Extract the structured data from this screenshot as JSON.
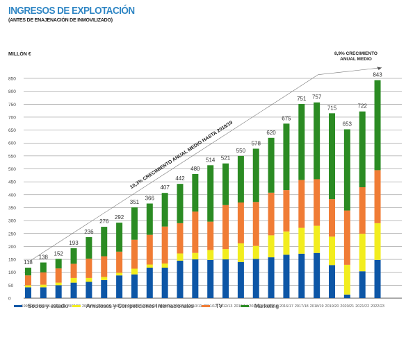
{
  "header": {
    "title": "INGRESOS DE EXPLOTACIÓN",
    "subtitle": "(ANTES DE ENAJENACIÓN DE INMOVILIZADO)",
    "unit": "MILLÓN €"
  },
  "chart_data": {
    "type": "bar",
    "stacked": true,
    "ylabel": "MILLÓN €",
    "ylim": [
      0,
      850
    ],
    "yticks": [
      0,
      50,
      100,
      150,
      200,
      250,
      300,
      350,
      400,
      450,
      500,
      550,
      600,
      650,
      700,
      750,
      800,
      850
    ],
    "grid": true,
    "legend_position": "bottom",
    "categories": [
      "1999/00",
      "2000/01",
      "2001/02",
      "2002/03",
      "2003/04",
      "2004/05",
      "2005/06",
      "2006/07",
      "2007/08",
      "2008/09",
      "2009/10",
      "2010/11",
      "2011/12",
      "2012/13",
      "2013/14",
      "2014/15",
      "2015/16",
      "2016/17",
      "2017/18",
      "2018/19",
      "2019/20",
      "2020/21",
      "2021/22",
      "2022/23"
    ],
    "totals": [
      118,
      138,
      152,
      193,
      236,
      276,
      292,
      351,
      366,
      407,
      442,
      480,
      514,
      521,
      550,
      578,
      620,
      675,
      751,
      757,
      715,
      653,
      722,
      843
    ],
    "series": [
      {
        "name": "Socios y estadio",
        "color": "#0d56a6",
        "values": [
          42,
          42,
          50,
          60,
          63,
          70,
          88,
          92,
          118,
          118,
          145,
          150,
          148,
          150,
          140,
          152,
          158,
          168,
          172,
          175,
          128,
          14,
          104,
          148
        ]
      },
      {
        "name": "Amistosos y Competiciones Internacionales",
        "color": "#f2ed1e",
        "values": [
          8,
          10,
          10,
          18,
          15,
          12,
          10,
          22,
          12,
          16,
          28,
          25,
          38,
          40,
          72,
          50,
          85,
          90,
          100,
          105,
          110,
          115,
          145,
          142
        ]
      },
      {
        "name": "TV",
        "color": "#f07c35",
        "values": [
          38,
          48,
          55,
          55,
          75,
          80,
          82,
          112,
          115,
          143,
          117,
          160,
          110,
          170,
          158,
          170,
          165,
          160,
          185,
          180,
          145,
          210,
          180,
          205
        ]
      },
      {
        "name": "Marketing",
        "color": "#2b8b23",
        "values": [
          30,
          38,
          37,
          60,
          83,
          114,
          112,
          125,
          121,
          130,
          152,
          145,
          218,
          161,
          180,
          206,
          212,
          257,
          294,
          297,
          332,
          314,
          293,
          348
        ]
      }
    ],
    "annotations": [
      {
        "text": "10,3% CRECIMIENTO ANUAL MEDIO HASTA 2018/19"
      },
      {
        "text": "8,9% CRECIMIENTO ANUAL MEDIO"
      }
    ]
  }
}
